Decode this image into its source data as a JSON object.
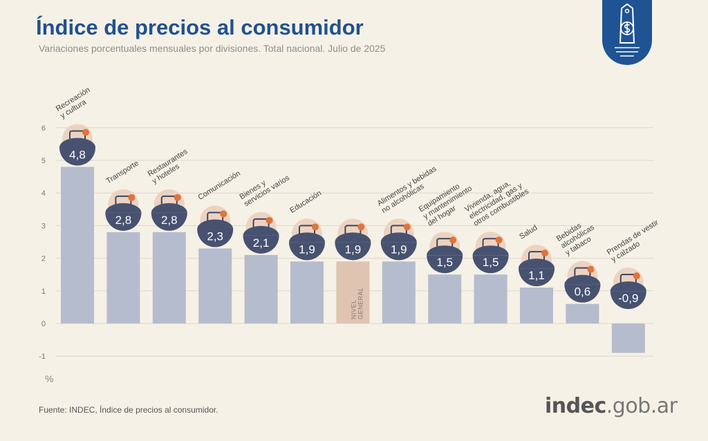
{
  "header": {
    "title": "Índice de precios al consumidor",
    "subtitle": "Variaciones porcentuales mensuales por divisiones. Total nacional. Julio de 2025"
  },
  "footer": {
    "source": "Fuente: INDEC, Índice de precios al consumidor."
  },
  "logo": {
    "main": "indec",
    "suffix": ".gob.ar"
  },
  "colors": {
    "title": "#21518f",
    "bar": "#b5bccd",
    "highlight_bar": "#dfc4b1",
    "badge": "#475271",
    "badge_text": "#ffffff"
  },
  "chart_data": {
    "type": "bar",
    "title": "Índice de precios al consumidor",
    "ylabel": "%",
    "ylim": [
      -1,
      6
    ],
    "yticks": [
      "-1",
      "0",
      "1",
      "2",
      "3",
      "4",
      "5",
      "6"
    ],
    "grid": true,
    "categories": [
      {
        "lines": [
          "Recreación",
          "y cultura"
        ],
        "value": 4.8,
        "label": "4,8",
        "icon": "beach-umbrella-icon"
      },
      {
        "lines": [
          "Transporte"
        ],
        "value": 2.8,
        "label": "2,8",
        "icon": "car-sube-card-icon"
      },
      {
        "lines": [
          "Restaurantes",
          "y hoteles"
        ],
        "value": 2.8,
        "label": "2,8",
        "icon": "plate-cutlery-icon"
      },
      {
        "lines": [
          "Comunicación"
        ],
        "value": 2.3,
        "label": "2,3",
        "icon": "smartphone-icon"
      },
      {
        "lines": [
          "Bienes y",
          "servicios varios"
        ],
        "value": 2.1,
        "label": "2,1",
        "icon": "comb-scissors-icon"
      },
      {
        "lines": [
          "Educación"
        ],
        "value": 1.9,
        "label": "1,9",
        "icon": "notebook-pencil-icon"
      },
      {
        "lines": [],
        "value": 1.9,
        "label": "1,9",
        "icon": "shopping-basket-icon",
        "highlight": true,
        "bar_text": [
          "NIVEL",
          "GENERAL"
        ]
      },
      {
        "lines": [
          "Alimentos y bebidas",
          "no alcohólicas"
        ],
        "value": 1.9,
        "label": "1,9",
        "icon": "chicken-food-icon"
      },
      {
        "lines": [
          "Equipamiento",
          "y mantenimiento",
          "del hogar"
        ],
        "value": 1.5,
        "label": "1,5",
        "icon": "air-conditioner-icon"
      },
      {
        "lines": [
          "Vivienda, agua,",
          "electricidad, gas y",
          "otros combustibles"
        ],
        "value": 1.5,
        "label": "1,5",
        "icon": "lightbulb-icon"
      },
      {
        "lines": [
          "Salud"
        ],
        "value": 1.1,
        "label": "1,1",
        "icon": "medical-cross-icon"
      },
      {
        "lines": [
          "Bebidas",
          "alcohólicas",
          "y tabaco"
        ],
        "value": 0.6,
        "label": "0,6",
        "icon": "wine-glass-icon"
      },
      {
        "lines": [
          "Prendas de vestir",
          "y calzado"
        ],
        "value": -0.9,
        "label": "-0,9",
        "icon": "tshirt-shoe-icon"
      }
    ]
  }
}
